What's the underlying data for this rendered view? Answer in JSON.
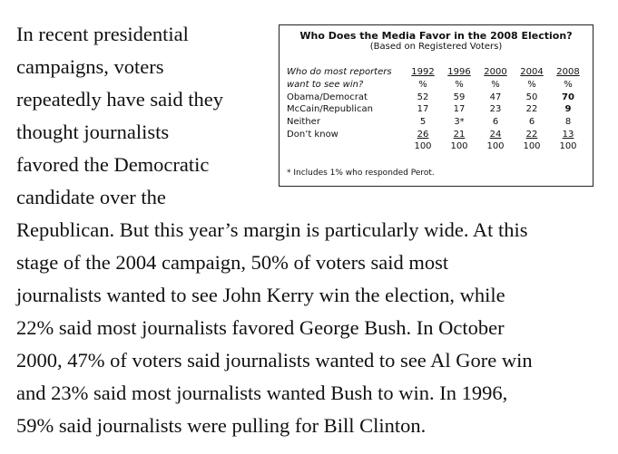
{
  "article": {
    "lines": [
      "In recent presidential",
      "campaigns, voters",
      "repeatedly have said they",
      "thought journalists",
      "favored the Democratic",
      "candidate over the",
      "Republican. But this year’s margin is particularly wide. At this",
      "stage of the 2004 campaign, 50% of voters said most",
      "journalists wanted to see John Kerry win the election, while",
      "22% said most journalists favored George Bush. In October",
      "2000, 47% of voters said journalists wanted to see Al Gore win",
      "and 23% said most journalists wanted Bush to win. In 1996,",
      "59% said journalists were pulling for Bill Clinton."
    ]
  },
  "table": {
    "title": "Who Does the Media Favor in the 2008 Election?",
    "subtitle": "(Based on Registered Voters)",
    "question_line1": "Who do most reporters",
    "question_line2": "want to see win?",
    "years": [
      "1992",
      "1996",
      "2000",
      "2004",
      "2008"
    ],
    "unit": "%",
    "rows": [
      {
        "label": "Obama/Democrat",
        "values": [
          "52",
          "59",
          "47",
          "50",
          "70"
        ]
      },
      {
        "label": "McCain/Republican",
        "values": [
          "17",
          "17",
          "23",
          "22",
          "9"
        ]
      },
      {
        "label": "Neither",
        "values": [
          "5",
          "3*",
          "6",
          "6",
          "8"
        ]
      },
      {
        "label": "Don’t know",
        "values": [
          "26",
          "21",
          "24",
          "22",
          "13"
        ]
      }
    ],
    "totals": [
      "100",
      "100",
      "100",
      "100",
      "100"
    ],
    "footnote": "* Includes 1% who responded Perot."
  }
}
